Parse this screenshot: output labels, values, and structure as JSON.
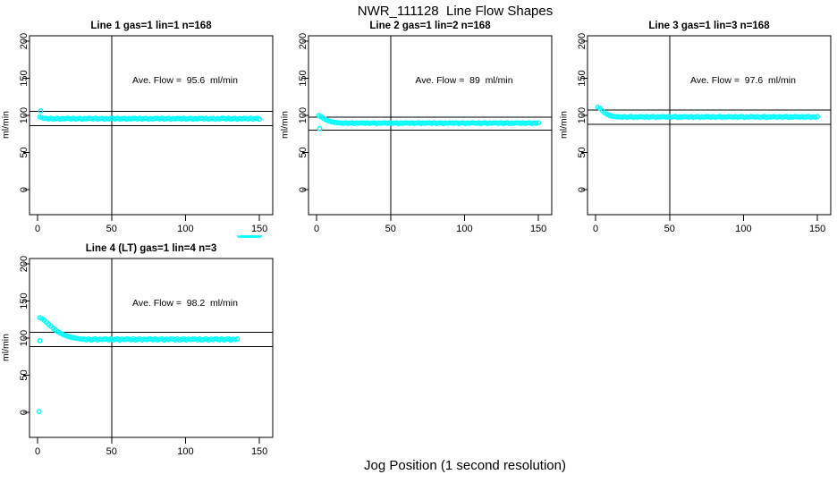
{
  "page": {
    "title": "NWR_111128  Line Flow Shapes",
    "xlabel": "Jog Position (1 second resolution)",
    "accent_color": "#00FFFF",
    "axis_color": "#000000",
    "background": "#FFFFFF"
  },
  "x_common": [
    1.5,
    3,
    4.5,
    6,
    7.5,
    9,
    10.5,
    12,
    13.5,
    15,
    16.5,
    18,
    19.5,
    21,
    22.5,
    24,
    25.5,
    27,
    28.5,
    30,
    31.5,
    33,
    34.5,
    36,
    37.5,
    39,
    40.5,
    42,
    43.5,
    45,
    46.5,
    48,
    49.5,
    51,
    52.5,
    54,
    55.5,
    57,
    58.5,
    60,
    61.5,
    63,
    64.5,
    66,
    67.5,
    69,
    70.5,
    72,
    73.5,
    75,
    76.5,
    78,
    79.5,
    81,
    82.5,
    84,
    85.5,
    87,
    88.5,
    90,
    91.5,
    93,
    94.5,
    96,
    97.5,
    99,
    100.5,
    102,
    103.5,
    105,
    106.5,
    108,
    109.5,
    111,
    112.5,
    114,
    115.5,
    117,
    118.5,
    120,
    121.5,
    123,
    124.5,
    126,
    127.5,
    129,
    130.5,
    132,
    133.5,
    135,
    136.5,
    138,
    139.5,
    141,
    142.5,
    144,
    145.5,
    147,
    148.5,
    150
  ],
  "chart_data": [
    {
      "type": "scatter",
      "title": "Line 1 gas=1 lin=1 n=168",
      "annotation": "Ave. Flow =  95.6  ml/min",
      "ave_flow_ml_min": 95.6,
      "n": 168,
      "ylabel": "ml/min",
      "xticks": [
        0,
        50,
        100,
        150
      ],
      "yticks": [
        0,
        50,
        100,
        150,
        200
      ],
      "xlim": [
        -5.5,
        159
      ],
      "ylim": [
        -33.7,
        207.3
      ],
      "vline_x": 50,
      "hlines": [
        105.2,
        86.0
      ],
      "grid": false,
      "y": [
        98.0,
        96.8,
        96.2,
        95.9,
        95.2,
        96.2,
        95.0,
        95.6,
        96.1,
        94.9,
        95.7,
        95.3,
        96.0,
        95.9,
        95.2,
        96.2,
        95.0,
        95.6,
        96.1,
        94.9,
        95.7,
        95.3,
        96.0,
        95.9,
        95.2,
        96.2,
        95.0,
        95.6,
        96.1,
        94.9,
        95.7,
        95.3,
        96.0,
        95.9,
        95.2,
        96.2,
        95.0,
        95.6,
        96.1,
        94.9,
        95.7,
        95.3,
        96.0,
        95.9,
        95.2,
        96.2,
        95.0,
        95.6,
        96.1,
        94.9,
        95.7,
        95.3,
        96.0,
        95.9,
        95.2,
        96.2,
        95.0,
        95.6,
        96.1,
        94.9,
        95.7,
        95.3,
        96.0,
        95.9,
        95.2,
        96.2,
        95.0,
        95.6,
        96.1,
        94.9,
        95.7,
        95.3,
        96.0,
        95.9,
        95.2,
        96.2,
        95.0,
        95.6,
        96.1,
        94.9,
        95.7,
        95.3,
        96.0,
        95.9,
        95.2,
        96.2,
        95.0,
        95.6,
        96.1,
        94.9,
        95.7,
        95.3,
        96.0,
        95.9,
        95.2,
        96.2,
        95.0,
        95.6,
        96.1,
        94.9
      ],
      "extra_points": [
        [
          2,
          106
        ]
      ]
    },
    {
      "type": "scatter",
      "title": "Line 2 gas=1 lin=2 n=168",
      "annotation": "Ave. Flow =  89  ml/min",
      "ave_flow_ml_min": 89,
      "n": 168,
      "ylabel": "ml/min",
      "xticks": [
        0,
        50,
        100,
        150
      ],
      "yticks": [
        0,
        50,
        100,
        150,
        200
      ],
      "xlim": [
        -5.5,
        159
      ],
      "ylim": [
        -33.7,
        207.3
      ],
      "vline_x": 50,
      "hlines": [
        97.9,
        80.1
      ],
      "grid": false,
      "y": [
        100.0,
        98.2,
        96.3,
        94.6,
        93.2,
        92.1,
        91.3,
        90.7,
        90.3,
        90.0,
        89.9,
        89.3,
        90.1,
        89.1,
        89.7,
        90.2,
        89.0,
        89.8,
        89.4,
        90.0,
        89.9,
        89.3,
        90.1,
        89.1,
        89.7,
        90.2,
        89.0,
        89.8,
        89.4,
        90.0,
        89.9,
        89.3,
        90.1,
        89.1,
        89.7,
        90.2,
        89.0,
        89.8,
        89.4,
        90.0,
        89.9,
        89.3,
        90.1,
        89.1,
        89.7,
        90.2,
        89.0,
        89.8,
        89.4,
        90.0,
        89.9,
        89.3,
        90.1,
        89.1,
        89.7,
        90.2,
        89.0,
        89.8,
        89.4,
        90.0,
        89.9,
        89.3,
        90.1,
        89.1,
        89.7,
        90.2,
        89.0,
        89.8,
        89.4,
        90.0,
        89.9,
        89.3,
        90.1,
        89.1,
        89.7,
        90.2,
        89.0,
        89.8,
        89.4,
        90.0,
        89.9,
        89.3,
        90.1,
        89.1,
        89.7,
        90.2,
        89.0,
        89.8,
        89.4,
        90.0,
        89.9,
        89.3,
        90.1,
        89.1,
        89.7,
        90.2,
        89.0,
        89.8,
        89.4,
        90.0
      ],
      "extra_points": [
        [
          2,
          82.3
        ]
      ]
    },
    {
      "type": "scatter",
      "title": "Line 3 gas=1 lin=3 n=168",
      "annotation": "Ave. Flow =  97.6  ml/min",
      "ave_flow_ml_min": 97.6,
      "n": 168,
      "ylabel": "ml/min",
      "xticks": [
        0,
        50,
        100,
        150
      ],
      "yticks": [
        0,
        50,
        100,
        150,
        200
      ],
      "xlim": [
        -5.5,
        159
      ],
      "ylim": [
        -33.7,
        207.3
      ],
      "vline_x": 50,
      "hlines": [
        107.4,
        87.8
      ],
      "grid": false,
      "y": [
        111.0,
        109.5,
        106.5,
        103.8,
        101.8,
        100.3,
        99.3,
        98.7,
        98.3,
        98.1,
        98.2,
        97.6,
        98.5,
        97.4,
        98.0,
        98.6,
        97.3,
        98.1,
        97.7,
        98.4,
        98.2,
        97.6,
        98.5,
        97.4,
        98.0,
        98.6,
        97.3,
        98.1,
        97.7,
        98.4,
        98.2,
        97.6,
        98.5,
        97.4,
        98.0,
        98.6,
        97.3,
        98.1,
        97.7,
        98.4,
        98.2,
        97.6,
        98.5,
        97.4,
        98.0,
        98.6,
        97.3,
        98.1,
        97.7,
        98.4,
        98.2,
        97.6,
        98.5,
        97.4,
        98.0,
        98.6,
        97.3,
        98.1,
        97.7,
        98.4,
        98.2,
        97.6,
        98.5,
        97.4,
        98.0,
        98.6,
        97.3,
        98.1,
        97.7,
        98.4,
        98.2,
        97.6,
        98.5,
        97.4,
        98.0,
        98.6,
        97.3,
        98.1,
        97.7,
        98.4,
        98.2,
        97.6,
        98.5,
        97.4,
        98.0,
        98.6,
        97.3,
        98.1,
        97.7,
        98.4,
        98.2,
        97.6,
        98.5,
        97.4,
        98.0,
        98.6,
        97.3,
        98.1,
        97.7,
        98.4
      ],
      "extra_points": []
    },
    {
      "type": "scatter",
      "title": "Line 4 (LT) gas=1 lin=4 n=3",
      "annotation": "Ave. Flow =  98.2  ml/min",
      "ave_flow_ml_min": 98.2,
      "n": 3,
      "ylabel": "ml/min",
      "xticks": [
        0,
        50,
        100,
        150
      ],
      "yticks": [
        0,
        50,
        100,
        150,
        200
      ],
      "xlim": [
        -5.5,
        159
      ],
      "ylim": [
        -33.7,
        207.3
      ],
      "vline_x": 50,
      "hlines": [
        108.0,
        88.4
      ],
      "grid": false,
      "y": [
        127.5,
        126.2,
        124.0,
        121.4,
        118.6,
        115.9,
        113.4,
        111.1,
        109.0,
        107.2,
        105.6,
        104.2,
        103.1,
        102.1,
        101.3,
        100.6,
        100.0,
        99.5,
        99.1,
        98.8,
        98.7,
        97.8,
        99.0,
        97.6,
        98.4,
        99.1,
        97.5,
        98.6,
        98.0,
        98.9,
        98.7,
        97.8,
        99.0,
        97.6,
        98.4,
        99.1,
        97.5,
        98.6,
        98.0,
        98.9,
        98.7,
        97.8,
        99.0,
        97.6,
        98.4,
        99.1,
        97.5,
        98.6,
        98.0,
        98.9,
        98.7,
        97.8,
        99.0,
        97.6,
        98.4,
        99.1,
        97.5,
        98.6,
        98.0,
        98.9,
        98.7,
        97.8,
        99.0,
        97.6,
        98.4,
        99.1,
        97.5,
        98.6,
        98.0,
        98.9,
        98.7,
        97.8,
        99.0,
        97.6,
        98.4,
        99.1,
        97.5,
        98.6,
        98.0,
        98.9,
        98.7,
        97.8,
        99.0,
        97.6,
        98.4,
        99.1,
        97.5,
        98.6,
        98.0,
        98.9
      ],
      "extra_points": [
        [
          1,
          1.0
        ],
        [
          1.5,
          96.5
        ]
      ]
    }
  ]
}
